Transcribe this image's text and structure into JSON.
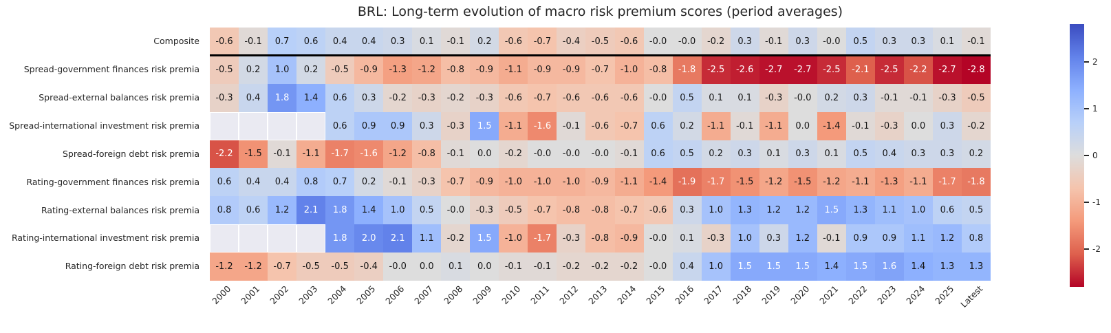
{
  "chart_data": {
    "type": "heatmap",
    "title": "BRL: Long-term evolution of macro risk premium scores (period averages)",
    "columns": [
      "2000",
      "2001",
      "2002",
      "2003",
      "2004",
      "2005",
      "2006",
      "2007",
      "2008",
      "2009",
      "2010",
      "2011",
      "2012",
      "2013",
      "2014",
      "2015",
      "2016",
      "2017",
      "2018",
      "2019",
      "2020",
      "2021",
      "2022",
      "2023",
      "2024",
      "2025",
      "Latest"
    ],
    "rows": [
      {
        "label": "Composite",
        "values": [
          "-0.6",
          "-0.1",
          "0.7",
          "0.6",
          "0.4",
          "0.4",
          "0.3",
          "0.1",
          "-0.1",
          "0.2",
          "-0.6",
          "-0.7",
          "-0.4",
          "-0.5",
          "-0.6",
          "-0.0",
          "-0.0",
          "-0.2",
          "0.3",
          "-0.1",
          "0.3",
          "-0.0",
          "0.5",
          "0.3",
          "0.3",
          "0.1",
          "-0.1"
        ]
      },
      {
        "label": "Spread-government finances risk premia",
        "values": [
          "-0.5",
          "0.2",
          "1.0",
          "0.2",
          "-0.5",
          "-0.9",
          "-1.3",
          "-1.2",
          "-0.8",
          "-0.9",
          "-1.1",
          "-0.9",
          "-0.9",
          "-0.7",
          "-1.0",
          "-0.8",
          "-1.8",
          "-2.5",
          "-2.6",
          "-2.7",
          "-2.7",
          "-2.5",
          "-2.1",
          "-2.5",
          "-2.2",
          "-2.7",
          "-2.8"
        ]
      },
      {
        "label": "Spread-external balances risk premia",
        "values": [
          "-0.3",
          "0.4",
          "1.8",
          "1.4",
          "0.6",
          "0.3",
          "-0.2",
          "-0.3",
          "-0.2",
          "-0.3",
          "-0.6",
          "-0.7",
          "-0.6",
          "-0.6",
          "-0.6",
          "-0.0",
          "0.5",
          "0.1",
          "0.1",
          "-0.3",
          "-0.0",
          "0.2",
          "0.3",
          "-0.1",
          "-0.1",
          "-0.3",
          "-0.5"
        ]
      },
      {
        "label": "Spread-international investment risk premia",
        "values": [
          null,
          null,
          null,
          null,
          "0.6",
          "0.9",
          "0.9",
          "0.3",
          "-0.3",
          "1.5",
          "-1.1",
          "-1.6",
          "-0.1",
          "-0.6",
          "-0.7",
          "0.6",
          "0.2",
          "-1.1",
          "-0.1",
          "-1.1",
          "0.0",
          "-1.4",
          "-0.1",
          "-0.3",
          "0.0",
          "0.3",
          "-0.2"
        ]
      },
      {
        "label": "Spread-foreign debt risk premia",
        "values": [
          "-2.2",
          "-1.5",
          "-0.1",
          "-1.1",
          "-1.7",
          "-1.6",
          "-1.2",
          "-0.8",
          "-0.1",
          "0.0",
          "-0.2",
          "-0.0",
          "-0.0",
          "-0.0",
          "-0.1",
          "0.6",
          "0.5",
          "0.2",
          "0.3",
          "0.1",
          "0.3",
          "0.1",
          "0.5",
          "0.4",
          "0.3",
          "0.3",
          "0.2"
        ]
      },
      {
        "label": "Rating-government finances risk premia",
        "values": [
          "0.6",
          "0.4",
          "0.4",
          "0.8",
          "0.7",
          "0.2",
          "-0.1",
          "-0.3",
          "-0.7",
          "-0.9",
          "-1.0",
          "-1.0",
          "-1.0",
          "-0.9",
          "-1.1",
          "-1.4",
          "-1.9",
          "-1.7",
          "-1.5",
          "-1.2",
          "-1.5",
          "-1.2",
          "-1.1",
          "-1.3",
          "-1.1",
          "-1.7",
          "-1.8"
        ]
      },
      {
        "label": "Rating-external balances risk premia",
        "values": [
          "0.8",
          "0.6",
          "1.2",
          "2.1",
          "1.8",
          "1.4",
          "1.0",
          "0.5",
          "-0.0",
          "-0.3",
          "-0.5",
          "-0.7",
          "-0.8",
          "-0.8",
          "-0.7",
          "-0.6",
          "0.3",
          "1.0",
          "1.3",
          "1.2",
          "1.2",
          "1.5",
          "1.3",
          "1.1",
          "1.0",
          "0.6",
          "0.5"
        ]
      },
      {
        "label": "Rating-international investment risk premia",
        "values": [
          null,
          null,
          null,
          null,
          "1.8",
          "2.0",
          "2.1",
          "1.1",
          "-0.2",
          "1.5",
          "-1.0",
          "-1.7",
          "-0.3",
          "-0.8",
          "-0.9",
          "-0.0",
          "0.1",
          "-0.3",
          "1.0",
          "0.3",
          "1.2",
          "-0.1",
          "0.9",
          "0.9",
          "1.1",
          "1.2",
          "0.8"
        ]
      },
      {
        "label": "Rating-foreign debt risk premia",
        "values": [
          "-1.2",
          "-1.2",
          "-0.7",
          "-0.5",
          "-0.5",
          "-0.4",
          "-0.0",
          "0.0",
          "0.1",
          "0.0",
          "-0.1",
          "-0.1",
          "-0.2",
          "-0.2",
          "-0.2",
          "-0.0",
          "0.4",
          "1.0",
          "1.5",
          "1.5",
          "1.5",
          "1.4",
          "1.5",
          "1.6",
          "1.4",
          "1.3",
          "1.3"
        ]
      }
    ],
    "colorbar": {
      "position": "right",
      "vmin": -2.8,
      "vmax": 2.8,
      "tick_values": [
        2,
        1,
        0,
        -1,
        -2
      ],
      "tick_labels": [
        "2",
        "1",
        "0",
        "-1",
        "-2"
      ]
    },
    "colormap": {
      "name": "coolwarm-reversed (blue = positive, red = negative)",
      "anchors": [
        {
          "t": 0.0,
          "hex": "#3b4cc0"
        },
        {
          "t": 0.125,
          "hex": "#6282ea"
        },
        {
          "t": 0.25,
          "hex": "#8db0fe"
        },
        {
          "t": 0.375,
          "hex": "#b8d0f9"
        },
        {
          "t": 0.5,
          "hex": "#dddddd"
        },
        {
          "t": 0.625,
          "hex": "#f5c4ad"
        },
        {
          "t": 0.75,
          "hex": "#f49a7b"
        },
        {
          "t": 0.875,
          "hex": "#de604d"
        },
        {
          "t": 1.0,
          "hex": "#b40426"
        }
      ],
      "nan_color": "#eaeaf2"
    },
    "layout": {
      "x_tick_rotation_deg": 45,
      "grid": false,
      "separator_below_row_index": 0,
      "annotations": "each cell labelled with its value to 1 decimal"
    }
  }
}
